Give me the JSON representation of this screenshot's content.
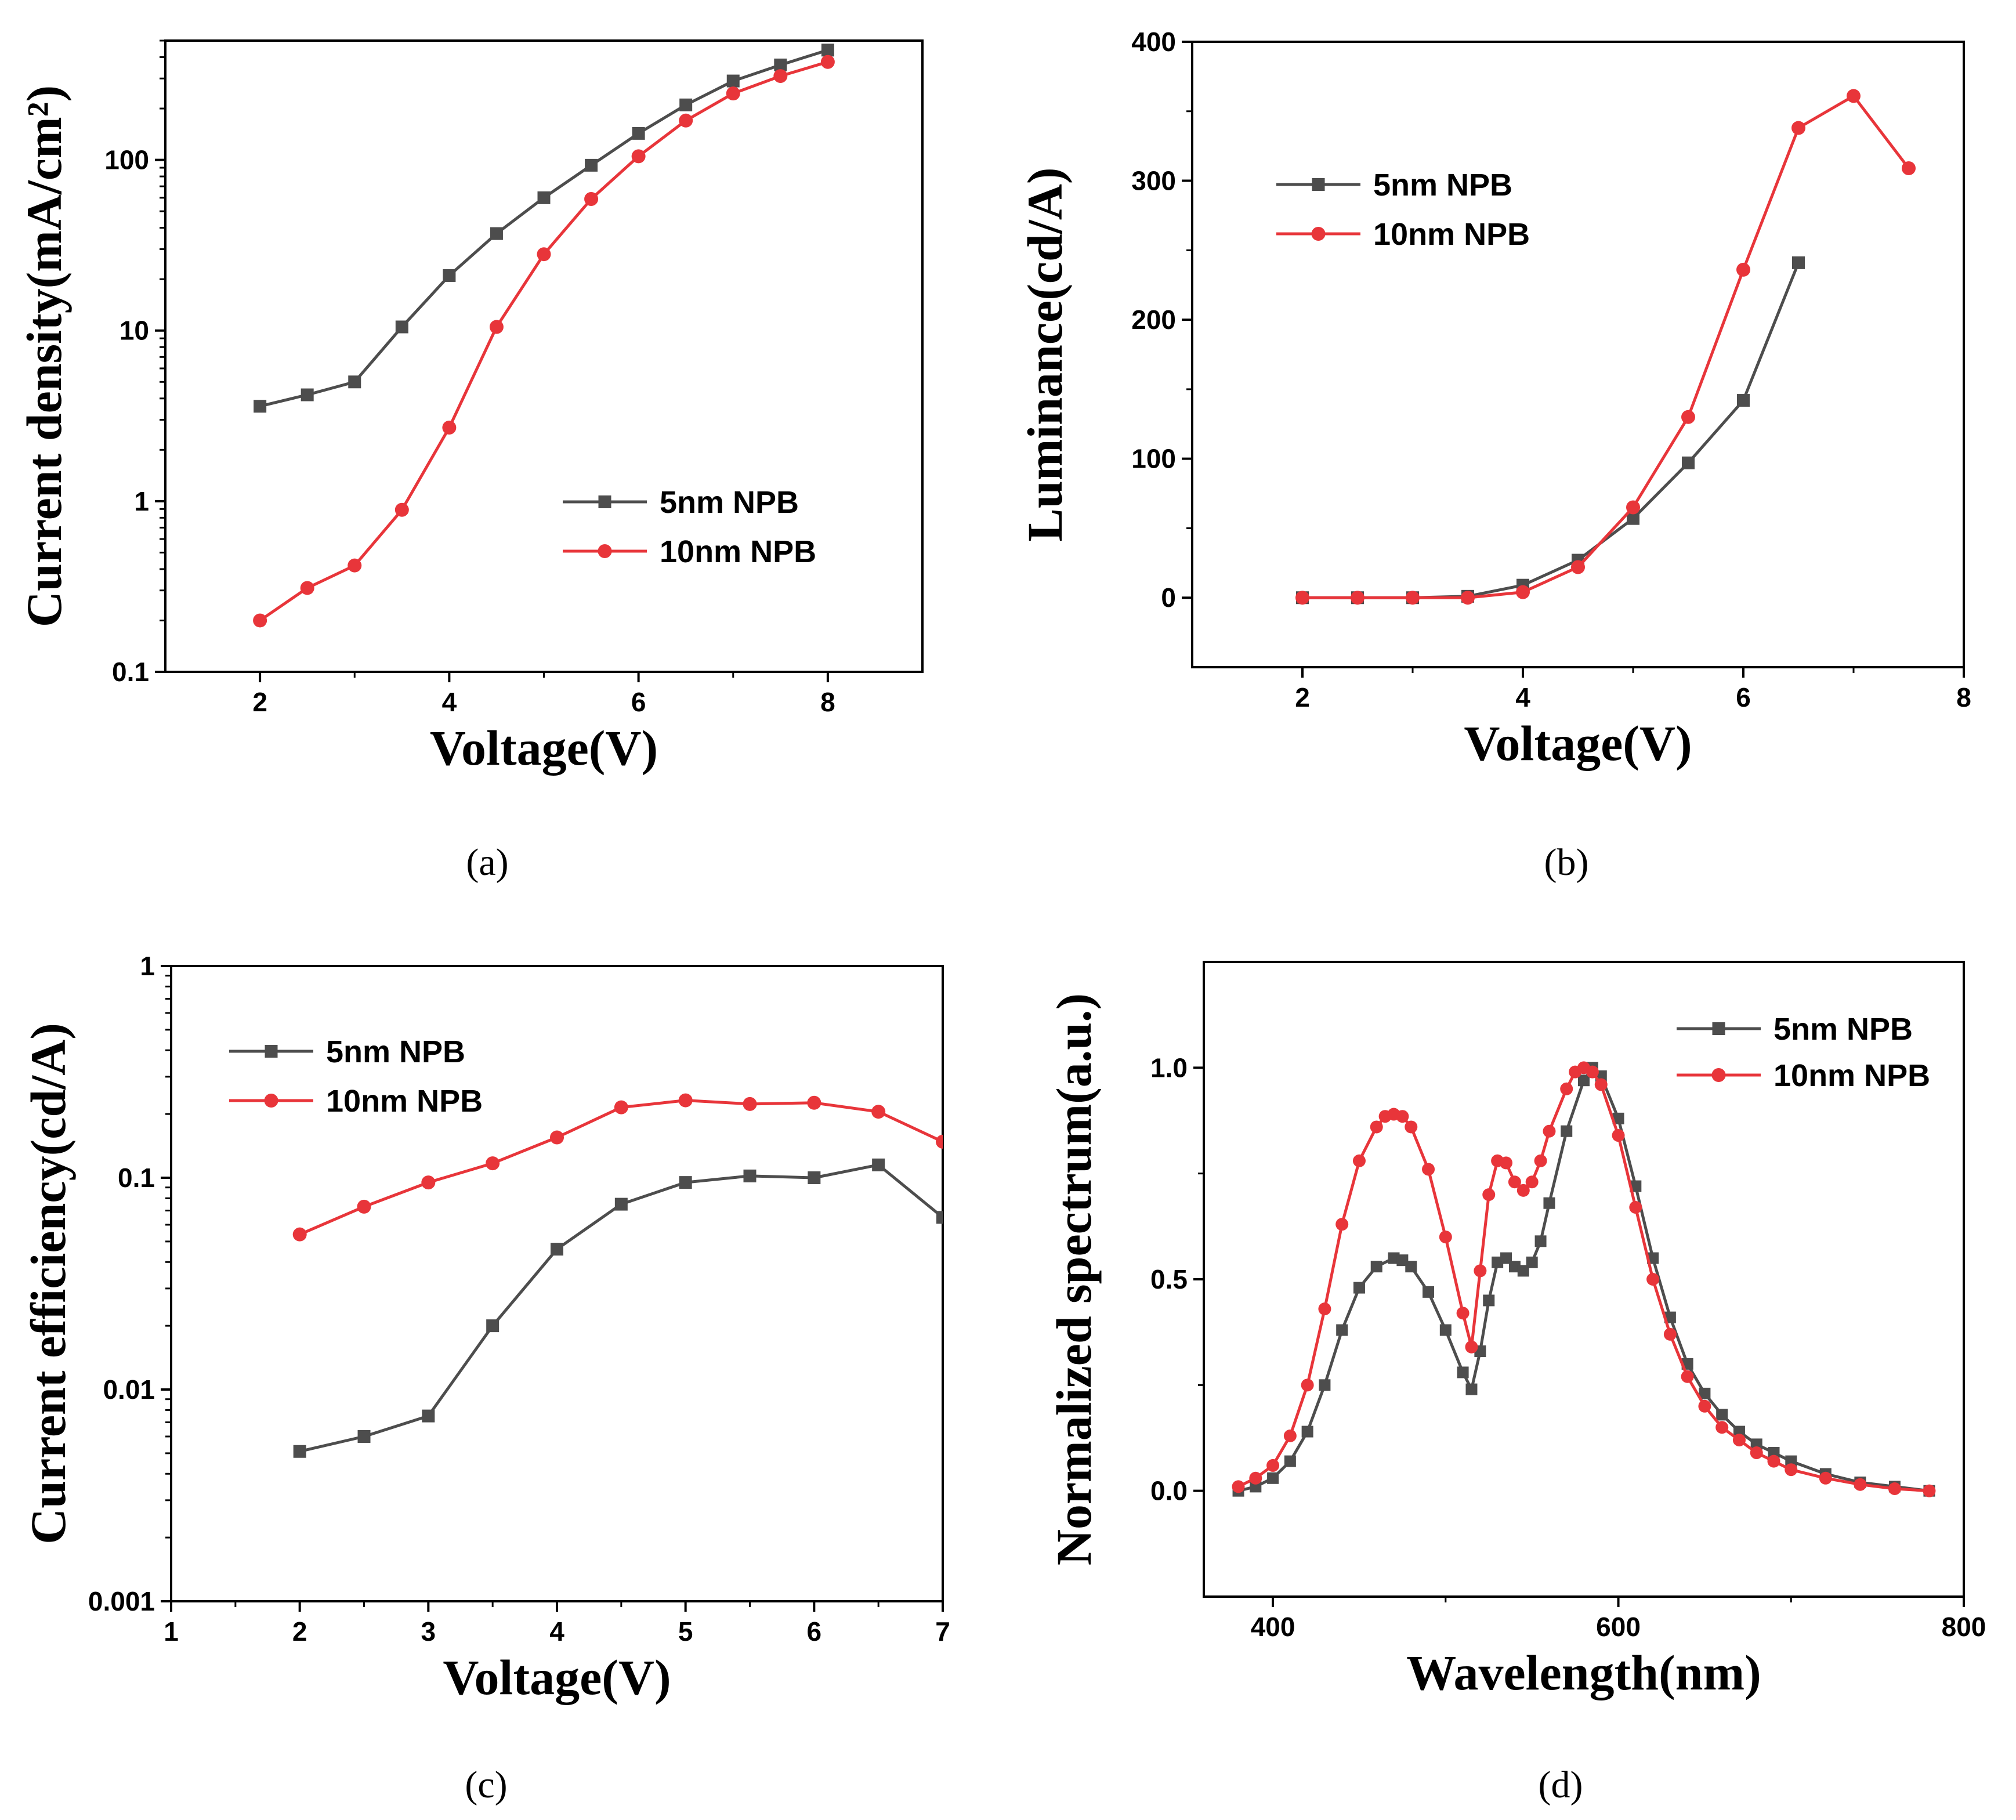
{
  "colors": {
    "series_5nm": "#4d4d4d",
    "series_10nm": "#e8353a",
    "axis": "#000000"
  },
  "chart_data": [
    {
      "type": "line",
      "panel": "a",
      "caption": "(a)",
      "xlabel": "Voltage(V)",
      "ylabel": "Current density(mA/cm²)",
      "yscale": "log",
      "xlim": [
        1,
        9
      ],
      "ylim": [
        0.1,
        500
      ],
      "xticks": [
        2,
        4,
        6,
        8
      ],
      "xtick_labels": [
        "2",
        "4",
        "6",
        "8"
      ],
      "yticks": [
        0.1,
        1,
        10,
        100
      ],
      "ytick_labels": [
        "0.1",
        "1",
        "10",
        "100"
      ],
      "legend_position": "lower-right",
      "series": [
        {
          "name": "5nm NPB",
          "color": "#4d4d4d",
          "marker": "square",
          "x": [
            2,
            2.5,
            3,
            3.5,
            4,
            4.5,
            5,
            5.5,
            6,
            6.5,
            7,
            7.5,
            8
          ],
          "y": [
            3.6,
            4.2,
            5.0,
            10.5,
            21,
            37,
            60,
            93,
            143,
            210,
            290,
            360,
            440
          ]
        },
        {
          "name": "10nm NPB",
          "color": "#e8353a",
          "marker": "circle",
          "x": [
            2,
            2.5,
            3,
            3.5,
            4,
            4.5,
            5,
            5.5,
            6,
            6.5,
            7,
            7.5,
            8
          ],
          "y": [
            0.2,
            0.31,
            0.42,
            0.89,
            2.7,
            10.5,
            28,
            59,
            105,
            170,
            245,
            310,
            375
          ]
        }
      ]
    },
    {
      "type": "line",
      "panel": "b",
      "caption": "(b)",
      "xlabel": "Voltage(V)",
      "ylabel": "Luminance(cd/A)",
      "yscale": "linear",
      "xlim": [
        1,
        8
      ],
      "ylim": [
        -50,
        400
      ],
      "xticks": [
        2,
        4,
        6,
        8
      ],
      "xtick_labels": [
        "2",
        "4",
        "6",
        "8"
      ],
      "yticks": [
        0,
        100,
        200,
        300,
        400
      ],
      "ytick_labels": [
        "0",
        "100",
        "200",
        "300",
        "400"
      ],
      "legend_position": "upper-left",
      "series": [
        {
          "name": "5nm NPB",
          "color": "#4d4d4d",
          "marker": "square",
          "x": [
            2,
            2.5,
            3,
            3.5,
            4,
            4.5,
            5,
            5.5,
            6,
            6.5
          ],
          "y": [
            0,
            0,
            0,
            1,
            9,
            27,
            57,
            97,
            142,
            241
          ]
        },
        {
          "name": "10nm NPB",
          "color": "#e8353a",
          "marker": "circle",
          "x": [
            2,
            2.5,
            3,
            3.5,
            4,
            4.5,
            5,
            5.5,
            6,
            6.5,
            7,
            7.5
          ],
          "y": [
            0,
            0,
            0,
            0,
            4,
            22,
            65,
            130,
            236,
            338,
            361,
            309
          ]
        }
      ]
    },
    {
      "type": "line",
      "panel": "c",
      "caption": "(c)",
      "xlabel": "Voltage(V)",
      "ylabel": "Current efficiency(cd/A)",
      "yscale": "log",
      "xlim": [
        1,
        7
      ],
      "ylim": [
        0.001,
        1
      ],
      "xticks": [
        1,
        2,
        3,
        4,
        5,
        6,
        7
      ],
      "xtick_labels": [
        "1",
        "2",
        "3",
        "4",
        "5",
        "6",
        "7"
      ],
      "yticks": [
        0.001,
        0.01,
        0.1,
        1
      ],
      "ytick_labels": [
        "0.001",
        "0.01",
        "0.1",
        "1"
      ],
      "legend_position": "upper-left",
      "series": [
        {
          "name": "5nm NPB",
          "color": "#4d4d4d",
          "marker": "square",
          "x": [
            2,
            2.5,
            3,
            3.5,
            4,
            4.5,
            5,
            5.5,
            6,
            6.5,
            7
          ],
          "y": [
            0.0051,
            0.006,
            0.0075,
            0.02,
            0.046,
            0.075,
            0.095,
            0.102,
            0.1,
            0.115,
            0.065
          ]
        },
        {
          "name": "10nm NPB",
          "color": "#e8353a",
          "marker": "circle",
          "x": [
            2,
            2.5,
            3,
            3.5,
            4,
            4.5,
            5,
            5.5,
            6,
            6.5,
            7
          ],
          "y": [
            0.054,
            0.073,
            0.095,
            0.117,
            0.155,
            0.215,
            0.232,
            0.223,
            0.226,
            0.205,
            0.148
          ]
        }
      ]
    },
    {
      "type": "line",
      "panel": "d",
      "caption": "(d)",
      "xlabel": "Wavelength(nm)",
      "ylabel": "Normalized spectrum(a.u.)",
      "yscale": "linear",
      "xlim": [
        360,
        800
      ],
      "ylim": [
        -0.25,
        1.25
      ],
      "xticks": [
        400,
        600,
        800
      ],
      "xtick_labels": [
        "400",
        "600",
        "800"
      ],
      "yticks": [
        0.0,
        0.5,
        1.0
      ],
      "ytick_labels": [
        "0.0",
        "0.5",
        "1.0"
      ],
      "legend_position": "upper-right",
      "series": [
        {
          "name": "5nm NPB",
          "color": "#4d4d4d",
          "marker": "square",
          "x": [
            380,
            390,
            400,
            410,
            420,
            430,
            440,
            450,
            460,
            470,
            475,
            480,
            490,
            500,
            510,
            515,
            520,
            525,
            530,
            535,
            540,
            545,
            550,
            555,
            560,
            570,
            580,
            585,
            590,
            600,
            610,
            620,
            630,
            640,
            650,
            660,
            670,
            680,
            690,
            700,
            720,
            740,
            760,
            780
          ],
          "y": [
            0.0,
            0.01,
            0.03,
            0.07,
            0.14,
            0.25,
            0.38,
            0.48,
            0.53,
            0.55,
            0.545,
            0.53,
            0.47,
            0.38,
            0.28,
            0.24,
            0.33,
            0.45,
            0.54,
            0.55,
            0.53,
            0.52,
            0.54,
            0.59,
            0.68,
            0.85,
            0.97,
            1.0,
            0.98,
            0.88,
            0.72,
            0.55,
            0.41,
            0.3,
            0.23,
            0.18,
            0.14,
            0.11,
            0.09,
            0.07,
            0.04,
            0.02,
            0.01,
            0.0
          ]
        },
        {
          "name": "10nm NPB",
          "color": "#e8353a",
          "marker": "circle",
          "x": [
            380,
            390,
            400,
            410,
            420,
            430,
            440,
            450,
            460,
            465,
            470,
            475,
            480,
            490,
            500,
            510,
            515,
            520,
            525,
            530,
            535,
            540,
            545,
            550,
            555,
            560,
            570,
            575,
            580,
            585,
            590,
            600,
            610,
            620,
            630,
            640,
            650,
            660,
            670,
            680,
            690,
            700,
            720,
            740,
            760,
            780
          ],
          "y": [
            0.01,
            0.03,
            0.06,
            0.13,
            0.25,
            0.43,
            0.63,
            0.78,
            0.86,
            0.885,
            0.89,
            0.885,
            0.86,
            0.76,
            0.6,
            0.42,
            0.34,
            0.52,
            0.7,
            0.78,
            0.775,
            0.73,
            0.71,
            0.73,
            0.78,
            0.85,
            0.95,
            0.99,
            1.0,
            0.99,
            0.96,
            0.84,
            0.67,
            0.5,
            0.37,
            0.27,
            0.2,
            0.15,
            0.12,
            0.09,
            0.07,
            0.05,
            0.03,
            0.015,
            0.005,
            0.0
          ]
        }
      ]
    }
  ]
}
